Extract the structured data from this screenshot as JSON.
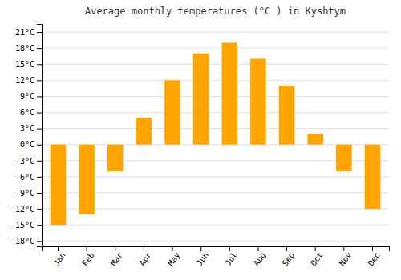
{
  "chart_data": {
    "type": "bar",
    "title": "Average monthly temperatures (°C ) in Kyshtym",
    "categories": [
      "Jan",
      "Feb",
      "Mar",
      "Apr",
      "May",
      "Jun",
      "Jul",
      "Aug",
      "Sep",
      "Oct",
      "Nov",
      "Dec"
    ],
    "values": [
      -15,
      -13,
      -5,
      5,
      12,
      17,
      19,
      16,
      11,
      2,
      -5,
      -12
    ],
    "color": "#FFA500",
    "ylim": [
      -19,
      22.5
    ],
    "yticks": [
      {
        "value": -18,
        "label": "-18°C"
      },
      {
        "value": -15,
        "label": "-15°C"
      },
      {
        "value": -12,
        "label": "-12°C"
      },
      {
        "value": -9,
        "label": "-9°C"
      },
      {
        "value": -6,
        "label": "-6°C"
      },
      {
        "value": -3,
        "label": "-3°C"
      },
      {
        "value": 0,
        "label": "0°C"
      },
      {
        "value": 3,
        "label": "3°C"
      },
      {
        "value": 6,
        "label": "6°C"
      },
      {
        "value": 9,
        "label": "9°C"
      },
      {
        "value": 12,
        "label": "12°C"
      },
      {
        "value": 15,
        "label": "15°C"
      },
      {
        "value": 18,
        "label": "18°C"
      },
      {
        "value": 21,
        "label": "21°C"
      }
    ],
    "grid": true
  }
}
